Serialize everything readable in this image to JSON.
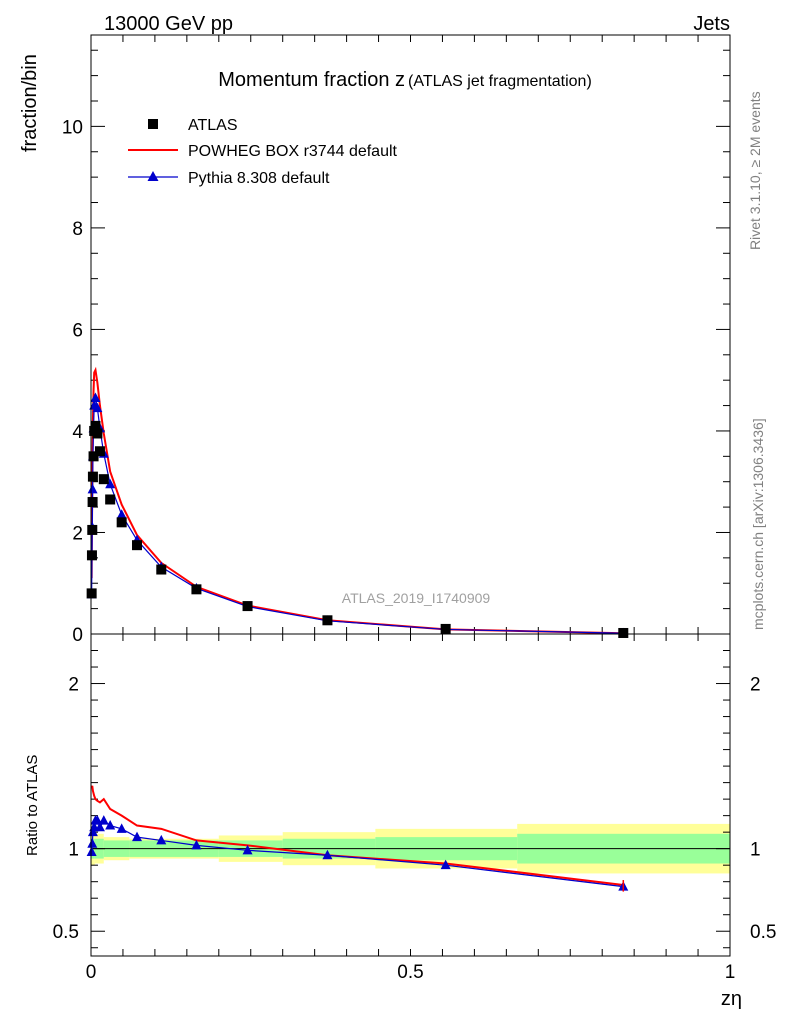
{
  "header": {
    "left": "13000 GeV pp",
    "right": "Jets"
  },
  "side_labels": {
    "top": "Rivet 3.1.10, ≥ 2M events",
    "bottom": "mcplots.cern.ch [arXiv:1306.3436]"
  },
  "colors": {
    "atlas": "#000000",
    "powheg": "#ff0000",
    "pythia": "#0000cc",
    "band_outer": "#ffff99",
    "band_inner": "#99ff99"
  },
  "chart_data": [
    {
      "type": "scatter",
      "panel": "main",
      "title_main": "Momentum fraction z",
      "title_sub": "(ATLAS jet fragmentation)",
      "ylabel": "fraction/bin",
      "watermark": "ATLAS_2019_I1740909",
      "xlim": [
        0,
        1
      ],
      "ylim": [
        0,
        11.8
      ],
      "yticks": [
        0,
        2,
        4,
        6,
        8,
        10
      ],
      "ytick_labels": [
        "0",
        "2",
        "4",
        "6",
        "8",
        "10"
      ],
      "legend_position": "top-left",
      "series": [
        {
          "name": "ATLAS",
          "style": "markers-square",
          "x": [
            0.001,
            0.0015,
            0.002,
            0.0025,
            0.003,
            0.004,
            0.005,
            0.007,
            0.01,
            0.014,
            0.02,
            0.03,
            0.048,
            0.072,
            0.11,
            0.165,
            0.245,
            0.37,
            0.555,
            0.833
          ],
          "y": [
            0.8,
            1.55,
            2.05,
            2.6,
            3.1,
            3.5,
            4.0,
            4.1,
            3.95,
            3.6,
            3.05,
            2.65,
            2.2,
            1.75,
            1.27,
            0.88,
            0.55,
            0.27,
            0.1,
            0.02
          ]
        },
        {
          "name": "POWHEG BOX r3744 default",
          "style": "line",
          "x": [
            0.001,
            0.0015,
            0.002,
            0.0025,
            0.003,
            0.004,
            0.005,
            0.007,
            0.01,
            0.014,
            0.02,
            0.03,
            0.048,
            0.072,
            0.11,
            0.165,
            0.245,
            0.37,
            0.555,
            0.833
          ],
          "y": [
            1.1,
            2.15,
            2.85,
            3.55,
            4.2,
            4.8,
            5.15,
            5.2,
            4.95,
            4.5,
            3.95,
            3.2,
            2.55,
            1.95,
            1.4,
            0.93,
            0.56,
            0.27,
            0.09,
            0.016
          ]
        },
        {
          "name": "Pythia 8.308 default",
          "style": "line-triangles",
          "x": [
            0.001,
            0.0015,
            0.002,
            0.0025,
            0.003,
            0.004,
            0.005,
            0.007,
            0.01,
            0.014,
            0.02,
            0.03,
            0.048,
            0.072,
            0.11,
            0.165,
            0.245,
            0.37,
            0.555,
            0.833
          ],
          "y": [
            0.78,
            1.55,
            2.1,
            2.85,
            3.5,
            4.05,
            4.5,
            4.65,
            4.45,
            4.05,
            3.55,
            2.95,
            2.35,
            1.85,
            1.32,
            0.9,
            0.54,
            0.26,
            0.09,
            0.015
          ]
        }
      ]
    },
    {
      "type": "line",
      "panel": "ratio",
      "ylabel": "Ratio to ATLAS",
      "xlabel": "zη",
      "xlim": [
        0,
        1
      ],
      "ylim": [
        0.35,
        2.3
      ],
      "yticks": [
        0.5,
        1,
        2
      ],
      "ytick_labels": [
        "0.5",
        "1",
        "2"
      ],
      "xticks": [
        0,
        0.5,
        1
      ],
      "xtick_labels": [
        "0",
        "0.5",
        "1"
      ],
      "reference": 1,
      "bands": [
        {
          "xmin": 0.0,
          "xmax": 0.006,
          "inner": 0.06,
          "outer": 0.1
        },
        {
          "xmin": 0.006,
          "xmax": 0.02,
          "inner": 0.06,
          "outer": 0.09
        },
        {
          "xmin": 0.02,
          "xmax": 0.06,
          "inner": 0.05,
          "outer": 0.07
        },
        {
          "xmin": 0.06,
          "xmax": 0.2,
          "inner": 0.05,
          "outer": 0.06
        },
        {
          "xmin": 0.2,
          "xmax": 0.3,
          "inner": 0.05,
          "outer": 0.08
        },
        {
          "xmin": 0.3,
          "xmax": 0.445,
          "inner": 0.06,
          "outer": 0.1
        },
        {
          "xmin": 0.445,
          "xmax": 0.667,
          "inner": 0.07,
          "outer": 0.12
        },
        {
          "xmin": 0.667,
          "xmax": 1.0,
          "inner": 0.09,
          "outer": 0.15
        }
      ],
      "series": [
        {
          "name": "POWHEG BOX r3744 default",
          "x": [
            0.001,
            0.002,
            0.003,
            0.005,
            0.007,
            0.01,
            0.014,
            0.02,
            0.03,
            0.048,
            0.072,
            0.11,
            0.165,
            0.245,
            0.37,
            0.555,
            0.833
          ],
          "y": [
            1.37,
            1.38,
            1.35,
            1.32,
            1.3,
            1.29,
            1.28,
            1.3,
            1.24,
            1.2,
            1.14,
            1.12,
            1.05,
            1.02,
            0.96,
            0.91,
            0.78
          ]
        },
        {
          "name": "Pythia 8.308 default",
          "x": [
            0.001,
            0.002,
            0.003,
            0.005,
            0.007,
            0.01,
            0.014,
            0.02,
            0.03,
            0.048,
            0.072,
            0.11,
            0.165,
            0.245,
            0.37,
            0.555,
            0.833
          ],
          "y": [
            0.98,
            1.03,
            1.1,
            1.13,
            1.17,
            1.17,
            1.13,
            1.17,
            1.14,
            1.12,
            1.07,
            1.05,
            1.02,
            0.99,
            0.96,
            0.9,
            0.77
          ]
        }
      ]
    }
  ]
}
